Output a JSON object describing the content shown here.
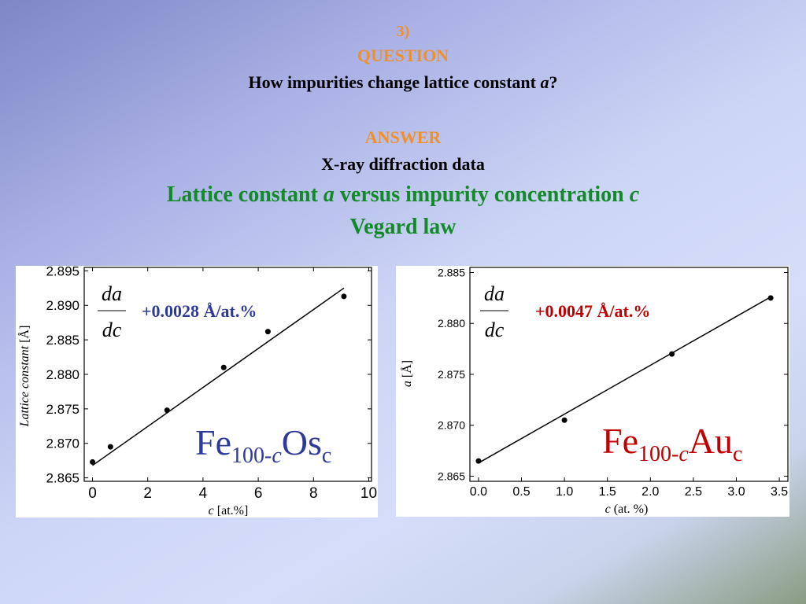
{
  "slide": {
    "number": "3)",
    "question_heading": "QUESTION",
    "question": [
      "How impurities change lattice constant ",
      "a",
      "?"
    ],
    "answer_heading": "ANSWER",
    "answer": "X-ray diffraction data",
    "subtitle": [
      "Lattice constant ",
      "a",
      " versus impurity concentration ",
      "c"
    ],
    "subtitle2": "Vegard law"
  },
  "chart_data": [
    {
      "type": "scatter",
      "x": [
        0,
        0.65,
        2.7,
        4.75,
        6.35,
        9.1
      ],
      "values": [
        2.8673,
        2.8695,
        2.8748,
        2.881,
        2.8862,
        2.8913
      ],
      "color": "#000000",
      "fit": {
        "x": [
          0,
          9.1
        ],
        "values": [
          2.8668,
          2.8925
        ],
        "color": "#000000"
      },
      "xlim": [
        -0.3,
        10.1
      ],
      "xticks": [
        0,
        2,
        4,
        6,
        8,
        10
      ],
      "ylim": [
        2.8645,
        2.8955
      ],
      "yticks": [
        2.865,
        {
          "value": 2.87,
          "label": "2.870"
        },
        2.875,
        {
          "value": 2.88,
          "label": "2.880"
        },
        2.885,
        {
          "value": 2.89,
          "label": "2.890"
        },
        2.895
      ],
      "xlabel": [
        "c",
        " [at.%]"
      ],
      "ylabel": [
        "Lattice constant",
        "  [Å]"
      ],
      "derivative": [
        "da",
        "dc"
      ],
      "slope": "+0.0028 Å/at.%",
      "formula": [
        "Fe",
        "100-",
        "c",
        "Os",
        "c"
      ],
      "annotation_color": "#2e3a9a"
    },
    {
      "type": "scatter",
      "x": [
        0,
        1.0,
        2.25,
        3.4
      ],
      "values": [
        2.8665,
        2.8705,
        2.877,
        2.8825
      ],
      "color": "#000000",
      "fit": {
        "x": [
          0,
          3.4
        ],
        "values": [
          2.8663,
          2.8826
        ],
        "color": "#000000"
      },
      "xlim": [
        -0.1,
        3.6
      ],
      "xticks": [
        {
          "value": 0,
          "label": "0.0"
        },
        0.5,
        {
          "value": 1,
          "label": "1.0"
        },
        1.5,
        {
          "value": 2,
          "label": "2.0"
        },
        2.5,
        {
          "value": 3,
          "label": "3.0"
        },
        3.5
      ],
      "ylim": [
        2.8645,
        2.8855
      ],
      "yticks": [
        2.865,
        {
          "value": 2.87,
          "label": "2.870"
        },
        2.875,
        {
          "value": 2.88,
          "label": "2.880"
        },
        2.885
      ],
      "xlabel": [
        "c",
        " (at. %)"
      ],
      "ylabel": [
        "a",
        " [Å]"
      ],
      "derivative": [
        "da",
        "dc"
      ],
      "slope": "+0.0047 Å/at.%",
      "formula": [
        "Fe",
        "100-",
        "c",
        "Au",
        "c"
      ],
      "annotation_color": "#c00000"
    }
  ]
}
